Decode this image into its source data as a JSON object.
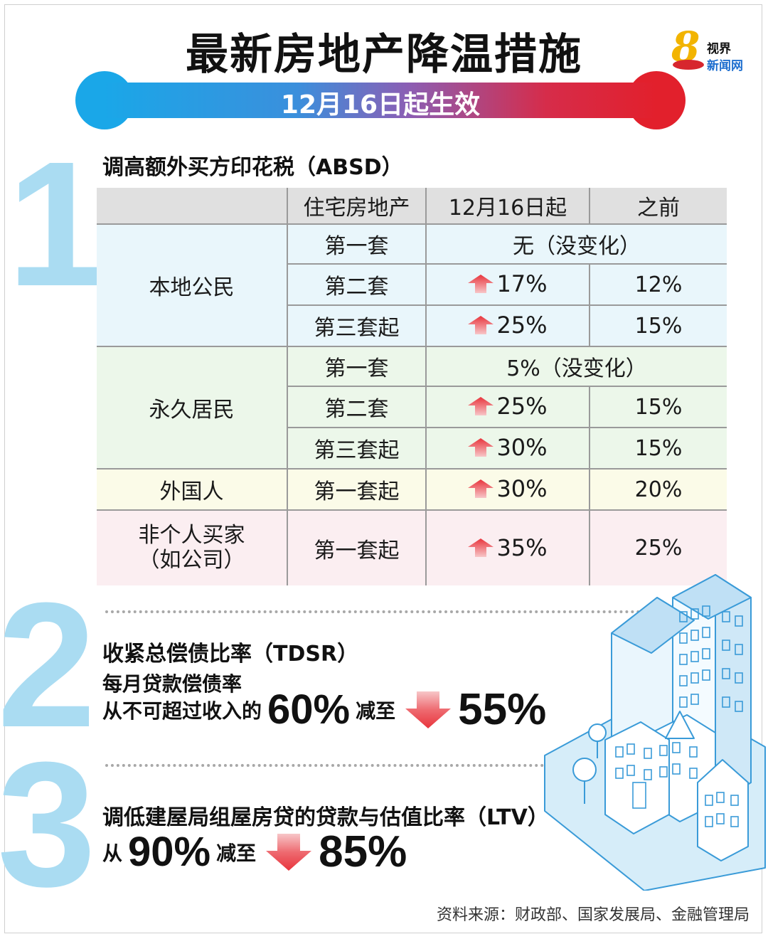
{
  "header": {
    "title": "最新房地产降温措施",
    "subtitle": "12月16日起生效",
    "logo": {
      "numeral": "8",
      "line1": "视界",
      "line2": "新闻网"
    }
  },
  "section1": {
    "number": "1",
    "title": "调高额外买方印花税（ABSD）",
    "columns": [
      "",
      "住宅房地产",
      "12月16日起",
      "之前"
    ],
    "groups": [
      {
        "label": "本地公民",
        "rows": [
          {
            "property": "第一套",
            "unchanged": "无（没变化）"
          },
          {
            "property": "第二套",
            "new": "17%",
            "old": "12%"
          },
          {
            "property": "第三套起",
            "new": "25%",
            "old": "15%"
          }
        ]
      },
      {
        "label": "永久居民",
        "rows": [
          {
            "property": "第一套",
            "unchanged": "5%（没变化）"
          },
          {
            "property": "第二套",
            "new": "25%",
            "old": "15%"
          },
          {
            "property": "第三套起",
            "new": "30%",
            "old": "15%"
          }
        ]
      },
      {
        "label": "外国人",
        "rows": [
          {
            "property": "第一套起",
            "new": "30%",
            "old": "20%"
          }
        ]
      },
      {
        "label_line1": "非个人买家",
        "label_line2": "（如公司）",
        "rows": [
          {
            "property": "第一套起",
            "new": "35%",
            "old": "25%"
          }
        ]
      }
    ]
  },
  "section2": {
    "number": "2",
    "title": "收紧总偿债比率（TDSR）",
    "subtitle": "每月贷款偿债率",
    "prefix": "从不可超过收入的",
    "from": "60%",
    "verb": "减至",
    "to": "55%"
  },
  "section3": {
    "number": "3",
    "title": "调低建屋局组屋房贷的贷款与估值比率（LTV）",
    "prefix": "从",
    "from": "90%",
    "verb": "减至",
    "to": "85%"
  },
  "source": "资料来源：财政部、国家发展局、金融管理局",
  "colors": {
    "blue": "#1aa7e8",
    "red": "#e2202c",
    "numeral": "#aadcf2",
    "arrow": "#e8343c"
  },
  "icons": [
    "up-arrow-icon",
    "down-arrow-icon",
    "buildings-illustration",
    "channel-8-logo"
  ]
}
